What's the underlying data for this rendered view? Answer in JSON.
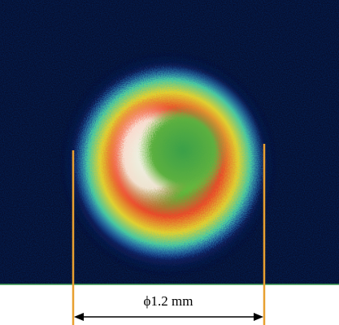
{
  "annotation": "ϕ1.2 mm"
}
